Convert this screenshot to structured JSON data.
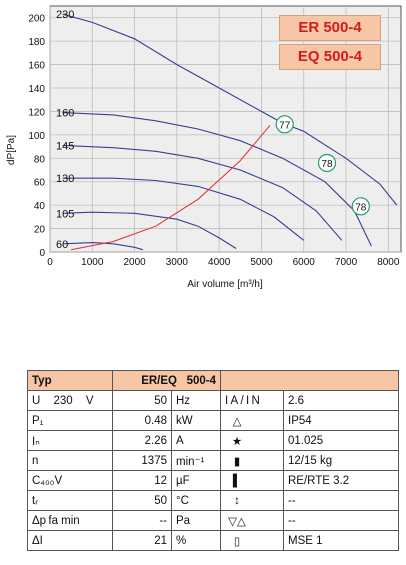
{
  "models": [
    "ER 500-4",
    "EQ 500-4"
  ],
  "chart_data": {
    "type": "line",
    "ylabel": "dP[Pa]",
    "xlabel": "Air volume [m³/h]",
    "xlim": [
      0,
      8300
    ],
    "ylim": [
      0,
      210
    ],
    "xticks": [
      0,
      1000,
      2000,
      3000,
      4000,
      5000,
      6000,
      7000,
      8000
    ],
    "yticks": [
      0,
      20,
      40,
      60,
      80,
      100,
      120,
      140,
      160,
      180,
      200
    ],
    "grid": true,
    "series": [
      {
        "name": "230",
        "points": [
          [
            300,
            203
          ],
          [
            1000,
            196
          ],
          [
            2000,
            182
          ],
          [
            3000,
            160
          ],
          [
            4000,
            140
          ],
          [
            5000,
            120
          ],
          [
            5500,
            110
          ],
          [
            6000,
            103
          ],
          [
            7000,
            80
          ],
          [
            7800,
            58
          ],
          [
            8200,
            40
          ]
        ]
      },
      {
        "name": "160",
        "points": [
          [
            300,
            119
          ],
          [
            1500,
            117
          ],
          [
            2500,
            112
          ],
          [
            3500,
            105
          ],
          [
            4500,
            95
          ],
          [
            5500,
            80
          ],
          [
            6500,
            60
          ],
          [
            7200,
            35
          ],
          [
            7600,
            5
          ]
        ]
      },
      {
        "name": "145",
        "points": [
          [
            300,
            91
          ],
          [
            1500,
            89
          ],
          [
            2500,
            86
          ],
          [
            3500,
            80
          ],
          [
            4500,
            70
          ],
          [
            5500,
            55
          ],
          [
            6300,
            35
          ],
          [
            6900,
            10
          ]
        ]
      },
      {
        "name": "130",
        "points": [
          [
            300,
            63
          ],
          [
            1500,
            63
          ],
          [
            2500,
            61
          ],
          [
            3500,
            56
          ],
          [
            4500,
            45
          ],
          [
            5300,
            30
          ],
          [
            6000,
            10
          ]
        ]
      },
      {
        "name": "105",
        "points": [
          [
            300,
            33
          ],
          [
            1000,
            34
          ],
          [
            2000,
            33
          ],
          [
            3000,
            28
          ],
          [
            3500,
            22
          ],
          [
            4000,
            12
          ],
          [
            4400,
            3
          ]
        ]
      },
      {
        "name": "60",
        "points": [
          [
            300,
            7
          ],
          [
            1000,
            8
          ],
          [
            1500,
            7
          ],
          [
            2000,
            4
          ],
          [
            2200,
            2
          ]
        ]
      }
    ],
    "system_curve": [
      [
        500,
        2
      ],
      [
        1500,
        9
      ],
      [
        2500,
        22
      ],
      [
        3500,
        45
      ],
      [
        4500,
        78
      ],
      [
        5200,
        108
      ]
    ],
    "annotations": [
      {
        "label": "77",
        "x": 5550,
        "y": 109
      },
      {
        "label": "78",
        "x": 6550,
        "y": 76
      },
      {
        "label": "78",
        "x": 7350,
        "y": 39
      }
    ]
  },
  "table": {
    "header": {
      "typ": "Typ",
      "model_label": "ER/EQ",
      "model_value": "500-4"
    },
    "rows": [
      {
        "l_sym": "U",
        "l_extra": "230",
        "l_unit_sym": "V",
        "value": "50",
        "unit": "Hz",
        "r_sym": "I A / I N",
        "r_value": "2.6"
      },
      {
        "l_sym": "P₁",
        "l_extra": "",
        "l_unit_sym": "",
        "value": "0.48",
        "unit": "kW",
        "r_sym": "△",
        "r_value": "IP54"
      },
      {
        "l_sym": "Iₙ",
        "l_extra": "",
        "l_unit_sym": "",
        "value": "2.26",
        "unit": "A",
        "r_sym": "★",
        "r_value": "01.025"
      },
      {
        "l_sym": "n",
        "l_extra": "",
        "l_unit_sym": "",
        "value": "1375",
        "unit": "min⁻¹",
        "r_sym": "▮",
        "r_value": "12/15  kg"
      },
      {
        "l_sym": "C₄₀₀V",
        "l_extra": "",
        "l_unit_sym": "",
        "value": "12",
        "unit": "µF",
        "r_sym": "▌",
        "r_value": "RE/RTE 3.2"
      },
      {
        "l_sym": "tᵣ",
        "l_extra": "",
        "l_unit_sym": "",
        "value": "50",
        "unit": "°C",
        "r_sym": "↕",
        "r_value": "--"
      },
      {
        "l_sym": "Δp fa min",
        "l_extra": "",
        "l_unit_sym": "",
        "value": "--",
        "unit": "Pa",
        "r_sym": "▽△",
        "r_value": "--"
      },
      {
        "l_sym": "ΔI",
        "l_extra": "",
        "l_unit_sym": "",
        "value": "21",
        "unit": "%",
        "r_sym": "▯",
        "r_value": "MSE 1"
      }
    ]
  }
}
